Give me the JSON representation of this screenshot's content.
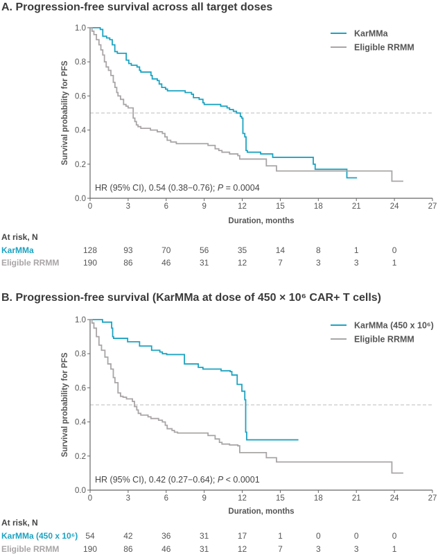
{
  "colors": {
    "karmma": "#1ba3c1",
    "rrmm": "#a9a5a6",
    "axis": "#666666",
    "median": "#bbbbbb"
  },
  "chart_data": [
    {
      "type": "line",
      "subtype": "kaplan-meier",
      "title": "A. Progression-free survival across all target doses",
      "xlabel": "Duration, months",
      "ylabel": "Survival probability for PFS",
      "xlim": [
        0,
        27
      ],
      "ylim": [
        0,
        1
      ],
      "xticks": [
        "0",
        "3",
        "6",
        "9",
        "12",
        "15",
        "18",
        "21",
        "24",
        "27"
      ],
      "yticks": [
        "0.0",
        "0.2",
        "0.4",
        "0.6",
        "0.8",
        "1.0"
      ],
      "median_line": 0.5,
      "legend_position": "top-right",
      "annotation": {
        "pre": "HR (95% CI), 0.54 (0.38−0.76); ",
        "p": "P",
        "post": " = 0.0004"
      },
      "series": [
        {
          "name": "KarMMa",
          "color_key": "karmma",
          "end": 21.05,
          "steps": [
            [
              0,
              1
            ],
            [
              0.8,
              0.99
            ],
            [
              1.0,
              0.95
            ],
            [
              1.3,
              0.94
            ],
            [
              1.55,
              0.93
            ],
            [
              1.75,
              0.9
            ],
            [
              1.95,
              0.86
            ],
            [
              2.15,
              0.85
            ],
            [
              2.85,
              0.81
            ],
            [
              3.05,
              0.79
            ],
            [
              3.25,
              0.78
            ],
            [
              3.7,
              0.77
            ],
            [
              3.9,
              0.75
            ],
            [
              4.0,
              0.74
            ],
            [
              4.8,
              0.72
            ],
            [
              4.9,
              0.7
            ],
            [
              5.3,
              0.69
            ],
            [
              5.45,
              0.67
            ],
            [
              5.65,
              0.65
            ],
            [
              5.95,
              0.64
            ],
            [
              6.1,
              0.63
            ],
            [
              7.5,
              0.62
            ],
            [
              8.0,
              0.61
            ],
            [
              8.15,
              0.59
            ],
            [
              8.6,
              0.58
            ],
            [
              8.9,
              0.56
            ],
            [
              9.0,
              0.55
            ],
            [
              10.3,
              0.54
            ],
            [
              10.8,
              0.53
            ],
            [
              11.0,
              0.52
            ],
            [
              11.3,
              0.51
            ],
            [
              11.55,
              0.5
            ],
            [
              11.85,
              0.48
            ],
            [
              11.95,
              0.47
            ],
            [
              12.05,
              0.38
            ],
            [
              12.2,
              0.36
            ],
            [
              12.3,
              0.28
            ],
            [
              12.4,
              0.27
            ],
            [
              13.45,
              0.26
            ],
            [
              14.4,
              0.24
            ],
            [
              17.6,
              0.2
            ],
            [
              17.75,
              0.17
            ],
            [
              20.25,
              0.12
            ]
          ]
        },
        {
          "name": "Eligible RRMM",
          "color_key": "rrmm",
          "end": 24.7,
          "steps": [
            [
              0,
              1
            ],
            [
              0.15,
              0.98
            ],
            [
              0.3,
              0.96
            ],
            [
              0.5,
              0.93
            ],
            [
              0.7,
              0.9
            ],
            [
              0.85,
              0.87
            ],
            [
              1.0,
              0.84
            ],
            [
              1.13,
              0.8
            ],
            [
              1.27,
              0.77
            ],
            [
              1.45,
              0.75
            ],
            [
              1.64,
              0.72
            ],
            [
              1.83,
              0.68
            ],
            [
              1.96,
              0.65
            ],
            [
              2.1,
              0.62
            ],
            [
              2.2,
              0.6
            ],
            [
              2.4,
              0.58
            ],
            [
              2.64,
              0.55
            ],
            [
              2.83,
              0.54
            ],
            [
              3.0,
              0.53
            ],
            [
              3.4,
              0.47
            ],
            [
              3.53,
              0.45
            ],
            [
              3.65,
              0.43
            ],
            [
              3.78,
              0.42
            ],
            [
              4.0,
              0.41
            ],
            [
              4.76,
              0.4
            ],
            [
              5.3,
              0.39
            ],
            [
              5.7,
              0.38
            ],
            [
              5.9,
              0.36
            ],
            [
              6.08,
              0.34
            ],
            [
              6.36,
              0.33
            ],
            [
              6.8,
              0.32
            ],
            [
              9.3,
              0.31
            ],
            [
              9.86,
              0.29
            ],
            [
              10.15,
              0.28
            ],
            [
              10.4,
              0.27
            ],
            [
              11.0,
              0.26
            ],
            [
              11.65,
              0.25
            ],
            [
              11.8,
              0.23
            ],
            [
              13.9,
              0.19
            ],
            [
              14.7,
              0.16
            ],
            [
              23.8,
              0.1
            ]
          ]
        }
      ],
      "at_risk": {
        "header": "At risk, N",
        "rows": [
          {
            "label": "KarMMa",
            "color_key": "karmma",
            "values": [
              "128",
              "93",
              "70",
              "56",
              "35",
              "14",
              "8",
              "1",
              "0"
            ]
          },
          {
            "label": "Eligible RRMM",
            "color_key": "rrmm",
            "values": [
              "190",
              "86",
              "46",
              "31",
              "12",
              "7",
              "3",
              "3",
              "1"
            ]
          }
        ]
      }
    },
    {
      "type": "line",
      "subtype": "kaplan-meier",
      "title": "B. Progression-free survival (KarMMa at dose of 450 × 10⁶ CAR+ T cells)",
      "xlabel": "Duration, months",
      "ylabel": "Survival probability for PFS",
      "xlim": [
        0,
        27
      ],
      "ylim": [
        0,
        1
      ],
      "xticks": [
        "0",
        "3",
        "6",
        "9",
        "12",
        "15",
        "18",
        "21",
        "24",
        "27"
      ],
      "yticks": [
        "0.0",
        "0.2",
        "0.4",
        "0.6",
        "0.8",
        "1.0"
      ],
      "median_line": 0.5,
      "legend_position": "top-right",
      "annotation": {
        "pre": "HR (95% CI), 0.42 (0.27−0.64); ",
        "p": "P",
        "post": " < 0.0001"
      },
      "series": [
        {
          "name": "KarMMa (450 x 10⁶)",
          "color_key": "karmma",
          "end": 16.43,
          "steps": [
            [
              0,
              1
            ],
            [
              0.98,
              0.985
            ],
            [
              1.7,
              0.95
            ],
            [
              1.78,
              0.9
            ],
            [
              1.85,
              0.89
            ],
            [
              2.96,
              0.87
            ],
            [
              3.9,
              0.845
            ],
            [
              4.85,
              0.82
            ],
            [
              5.5,
              0.81
            ],
            [
              5.7,
              0.8
            ],
            [
              6.04,
              0.795
            ],
            [
              7.44,
              0.74
            ],
            [
              8.53,
              0.72
            ],
            [
              8.9,
              0.71
            ],
            [
              10.33,
              0.7
            ],
            [
              11.05,
              0.695
            ],
            [
              11.18,
              0.675
            ],
            [
              11.6,
              0.62
            ],
            [
              11.97,
              0.58
            ],
            [
              12.2,
              0.53
            ],
            [
              12.27,
              0.34
            ],
            [
              12.35,
              0.295
            ]
          ]
        },
        {
          "name": "Eligible RRMM",
          "color_key": "rrmm",
          "end": 24.7,
          "steps": [
            [
              0,
              1
            ],
            [
              0.15,
              0.98
            ],
            [
              0.3,
              0.95
            ],
            [
              0.5,
              0.9
            ],
            [
              0.7,
              0.85
            ],
            [
              0.9,
              0.82
            ],
            [
              1.17,
              0.78
            ],
            [
              1.4,
              0.74
            ],
            [
              1.64,
              0.71
            ],
            [
              1.83,
              0.66
            ],
            [
              1.96,
              0.63
            ],
            [
              2.2,
              0.57
            ],
            [
              2.4,
              0.55
            ],
            [
              2.6,
              0.545
            ],
            [
              2.87,
              0.535
            ],
            [
              3.34,
              0.52
            ],
            [
              3.5,
              0.49
            ],
            [
              3.68,
              0.47
            ],
            [
              3.8,
              0.45
            ],
            [
              4.0,
              0.44
            ],
            [
              4.57,
              0.43
            ],
            [
              4.8,
              0.42
            ],
            [
              5.4,
              0.41
            ],
            [
              5.7,
              0.4
            ],
            [
              5.93,
              0.38
            ],
            [
              6.08,
              0.36
            ],
            [
              6.46,
              0.35
            ],
            [
              6.65,
              0.34
            ],
            [
              6.9,
              0.335
            ],
            [
              9.3,
              0.32
            ],
            [
              9.86,
              0.3
            ],
            [
              10.2,
              0.28
            ],
            [
              10.4,
              0.27
            ],
            [
              11.0,
              0.265
            ],
            [
              11.65,
              0.26
            ],
            [
              11.8,
              0.22
            ],
            [
              13.9,
              0.19
            ],
            [
              14.7,
              0.165
            ],
            [
              23.8,
              0.1
            ]
          ]
        }
      ],
      "at_risk": {
        "header": "At risk, N",
        "rows": [
          {
            "label": "KarMMa (450 x 10⁶)",
            "color_key": "karmma",
            "values": [
              "54",
              "42",
              "36",
              "31",
              "17",
              "1",
              "0",
              "0",
              "0"
            ]
          },
          {
            "label": "Eligible RRMM",
            "color_key": "rrmm",
            "values": [
              "190",
              "86",
              "46",
              "31",
              "12",
              "7",
              "3",
              "3",
              "1"
            ]
          }
        ]
      }
    }
  ]
}
